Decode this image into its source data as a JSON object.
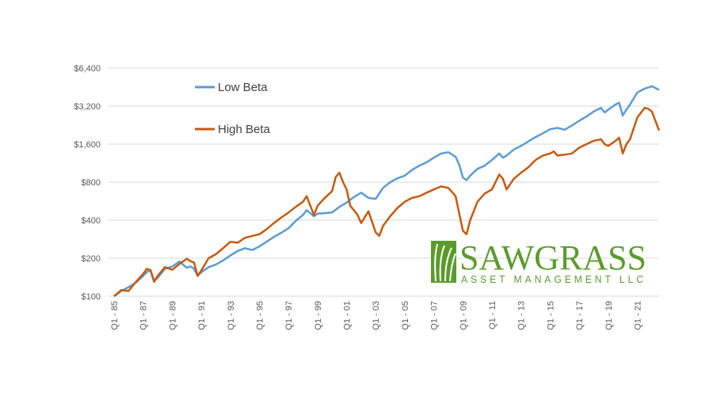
{
  "chart_data": {
    "type": "line",
    "title": "",
    "xlabel": "",
    "ylabel": "",
    "y_scale": "log2",
    "ylim": [
      100,
      6400
    ],
    "y_ticks": [
      100,
      200,
      400,
      800,
      1600,
      3200,
      6400
    ],
    "y_tick_labels": [
      "$100",
      "$200",
      "$400",
      "$800",
      "$1,600",
      "$3,200",
      "$6,400"
    ],
    "x_tick_labels": [
      "Q1 - 85",
      "Q1 - 87",
      "Q1 - 89",
      "Q1 - 91",
      "Q1 - 93",
      "Q1 - 95",
      "Q1 - 97",
      "Q1 - 99",
      "Q1 - 01",
      "Q1 - 03",
      "Q1 - 05",
      "Q1 - 07",
      "Q1 - 09",
      "Q1 - 11",
      "Q1 - 13",
      "Q1 - 15",
      "Q1 - 17",
      "Q1 - 19",
      "Q1 - 21"
    ],
    "grid": "horizontal",
    "legend_position": "top-left",
    "series": [
      {
        "name": "Low Beta",
        "color": "#5b9bd5",
        "points": [
          [
            1985.0,
            100
          ],
          [
            1985.5,
            110
          ],
          [
            1986.0,
            118
          ],
          [
            1986.5,
            128
          ],
          [
            1987.0,
            145
          ],
          [
            1987.25,
            155
          ],
          [
            1987.5,
            162
          ],
          [
            1987.75,
            132
          ],
          [
            1988.0,
            140
          ],
          [
            1988.5,
            165
          ],
          [
            1989.0,
            172
          ],
          [
            1989.5,
            188
          ],
          [
            1990.0,
            168
          ],
          [
            1990.25,
            172
          ],
          [
            1990.5,
            165
          ],
          [
            1990.75,
            145
          ],
          [
            1991.0,
            155
          ],
          [
            1991.5,
            170
          ],
          [
            1992.0,
            178
          ],
          [
            1992.5,
            192
          ],
          [
            1993.0,
            210
          ],
          [
            1993.5,
            228
          ],
          [
            1994.0,
            240
          ],
          [
            1994.5,
            232
          ],
          [
            1995.0,
            248
          ],
          [
            1995.5,
            270
          ],
          [
            1996.0,
            295
          ],
          [
            1996.5,
            318
          ],
          [
            1997.0,
            345
          ],
          [
            1997.5,
            395
          ],
          [
            1998.0,
            440
          ],
          [
            1998.25,
            480
          ],
          [
            1998.5,
            455
          ],
          [
            1998.75,
            430
          ],
          [
            1999.0,
            450
          ],
          [
            1999.5,
            455
          ],
          [
            2000.0,
            460
          ],
          [
            2000.5,
            510
          ],
          [
            2001.0,
            550
          ],
          [
            2001.5,
            610
          ],
          [
            2002.0,
            660
          ],
          [
            2002.5,
            600
          ],
          [
            2003.0,
            590
          ],
          [
            2003.5,
            720
          ],
          [
            2004.0,
            800
          ],
          [
            2004.5,
            860
          ],
          [
            2005.0,
            900
          ],
          [
            2005.5,
            1000
          ],
          [
            2006.0,
            1080
          ],
          [
            2006.5,
            1150
          ],
          [
            2007.0,
            1250
          ],
          [
            2007.5,
            1350
          ],
          [
            2008.0,
            1380
          ],
          [
            2008.5,
            1270
          ],
          [
            2008.75,
            1100
          ],
          [
            2009.0,
            870
          ],
          [
            2009.25,
            830
          ],
          [
            2009.5,
            900
          ],
          [
            2010.0,
            1020
          ],
          [
            2010.5,
            1080
          ],
          [
            2011.0,
            1200
          ],
          [
            2011.5,
            1350
          ],
          [
            2011.75,
            1250
          ],
          [
            2012.0,
            1300
          ],
          [
            2012.5,
            1450
          ],
          [
            2013.0,
            1550
          ],
          [
            2013.5,
            1680
          ],
          [
            2014.0,
            1820
          ],
          [
            2014.5,
            1950
          ],
          [
            2015.0,
            2100
          ],
          [
            2015.5,
            2150
          ],
          [
            2016.0,
            2080
          ],
          [
            2016.5,
            2250
          ],
          [
            2017.0,
            2450
          ],
          [
            2017.5,
            2650
          ],
          [
            2018.0,
            2900
          ],
          [
            2018.5,
            3100
          ],
          [
            2018.75,
            2850
          ],
          [
            2019.0,
            3000
          ],
          [
            2019.5,
            3300
          ],
          [
            2019.75,
            3400
          ],
          [
            2020.0,
            2700
          ],
          [
            2020.25,
            3000
          ],
          [
            2020.5,
            3300
          ],
          [
            2021.0,
            4100
          ],
          [
            2021.5,
            4400
          ],
          [
            2021.75,
            4500
          ],
          [
            2022.0,
            4600
          ],
          [
            2022.5,
            4300
          ]
        ]
      },
      {
        "name": "High Beta",
        "color": "#c55a11",
        "points": [
          [
            1985.0,
            100
          ],
          [
            1985.5,
            112
          ],
          [
            1986.0,
            110
          ],
          [
            1986.5,
            130
          ],
          [
            1987.0,
            150
          ],
          [
            1987.25,
            165
          ],
          [
            1987.5,
            160
          ],
          [
            1987.75,
            130
          ],
          [
            1988.0,
            145
          ],
          [
            1988.5,
            170
          ],
          [
            1989.0,
            162
          ],
          [
            1989.5,
            180
          ],
          [
            1990.0,
            198
          ],
          [
            1990.25,
            190
          ],
          [
            1990.5,
            185
          ],
          [
            1990.75,
            145
          ],
          [
            1991.0,
            160
          ],
          [
            1991.5,
            200
          ],
          [
            1992.0,
            215
          ],
          [
            1992.5,
            240
          ],
          [
            1993.0,
            270
          ],
          [
            1993.5,
            265
          ],
          [
            1994.0,
            290
          ],
          [
            1994.5,
            300
          ],
          [
            1995.0,
            310
          ],
          [
            1995.5,
            340
          ],
          [
            1996.0,
            380
          ],
          [
            1996.5,
            420
          ],
          [
            1997.0,
            460
          ],
          [
            1997.5,
            510
          ],
          [
            1998.0,
            560
          ],
          [
            1998.25,
            620
          ],
          [
            1998.5,
            520
          ],
          [
            1998.75,
            440
          ],
          [
            1999.0,
            520
          ],
          [
            1999.5,
            600
          ],
          [
            2000.0,
            680
          ],
          [
            2000.25,
            880
          ],
          [
            2000.5,
            950
          ],
          [
            2000.75,
            800
          ],
          [
            2001.0,
            700
          ],
          [
            2001.25,
            520
          ],
          [
            2001.5,
            480
          ],
          [
            2001.75,
            440
          ],
          [
            2002.0,
            380
          ],
          [
            2002.5,
            470
          ],
          [
            2003.0,
            320
          ],
          [
            2003.25,
            300
          ],
          [
            2003.5,
            360
          ],
          [
            2004.0,
            430
          ],
          [
            2004.5,
            500
          ],
          [
            2005.0,
            560
          ],
          [
            2005.5,
            600
          ],
          [
            2006.0,
            620
          ],
          [
            2006.5,
            660
          ],
          [
            2007.0,
            700
          ],
          [
            2007.5,
            740
          ],
          [
            2008.0,
            720
          ],
          [
            2008.5,
            620
          ],
          [
            2008.75,
            450
          ],
          [
            2009.0,
            330
          ],
          [
            2009.25,
            310
          ],
          [
            2009.5,
            400
          ],
          [
            2010.0,
            560
          ],
          [
            2010.5,
            650
          ],
          [
            2011.0,
            700
          ],
          [
            2011.5,
            920
          ],
          [
            2011.75,
            850
          ],
          [
            2012.0,
            700
          ],
          [
            2012.5,
            850
          ],
          [
            2013.0,
            950
          ],
          [
            2013.5,
            1050
          ],
          [
            2014.0,
            1200
          ],
          [
            2014.5,
            1300
          ],
          [
            2015.0,
            1350
          ],
          [
            2015.25,
            1400
          ],
          [
            2015.5,
            1300
          ],
          [
            2016.0,
            1320
          ],
          [
            2016.5,
            1350
          ],
          [
            2017.0,
            1500
          ],
          [
            2017.5,
            1600
          ],
          [
            2018.0,
            1700
          ],
          [
            2018.5,
            1750
          ],
          [
            2018.75,
            1600
          ],
          [
            2019.0,
            1550
          ],
          [
            2019.5,
            1700
          ],
          [
            2019.75,
            1800
          ],
          [
            2020.0,
            1350
          ],
          [
            2020.25,
            1600
          ],
          [
            2020.5,
            1750
          ],
          [
            2021.0,
            2600
          ],
          [
            2021.5,
            3100
          ],
          [
            2021.75,
            3050
          ],
          [
            2022.0,
            2900
          ],
          [
            2022.5,
            2050
          ]
        ]
      }
    ]
  },
  "logo": {
    "name": "SAWGRASS",
    "tagline": "ASSET MANAGEMENT LLC",
    "color": "#5b9b2e"
  }
}
